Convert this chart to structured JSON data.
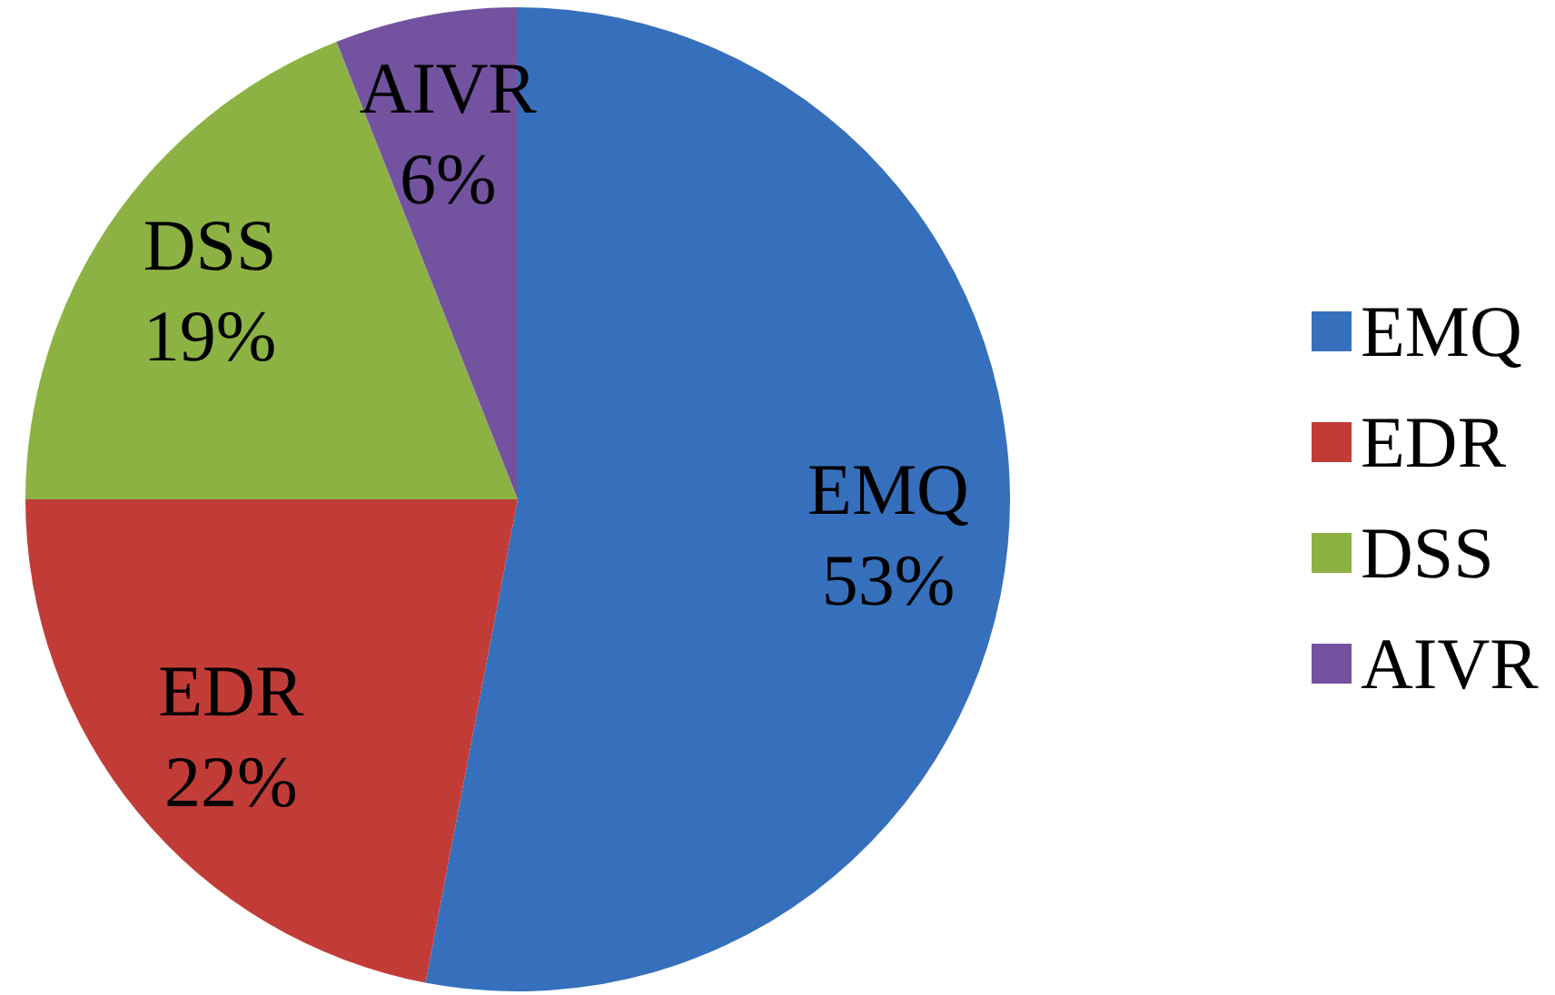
{
  "chart_data": {
    "type": "pie",
    "categories": [
      "EMQ",
      "EDR",
      "DSS",
      "AIVR"
    ],
    "values": [
      53,
      22,
      19,
      6
    ],
    "value_labels": [
      "53%",
      "22%",
      "19%",
      "6%"
    ],
    "colors": [
      "#3670bd",
      "#c23c37",
      "#8cb244",
      "#7353a0"
    ],
    "legend": "right"
  }
}
